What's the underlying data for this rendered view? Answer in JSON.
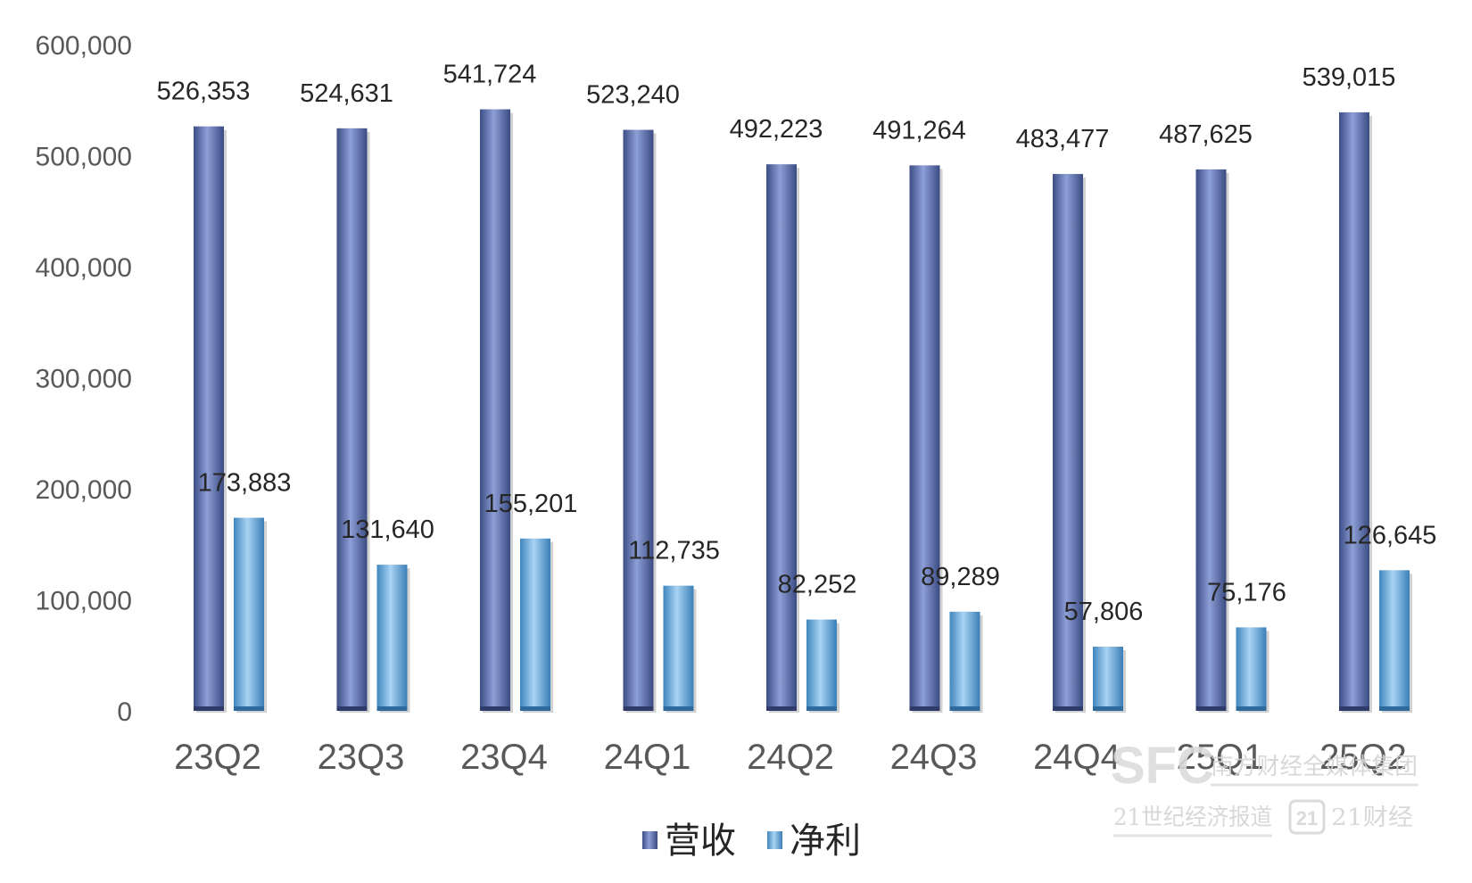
{
  "chart_data": {
    "type": "bar",
    "categories": [
      "23Q2",
      "23Q3",
      "23Q4",
      "24Q1",
      "24Q2",
      "24Q3",
      "24Q4",
      "25Q1",
      "25Q2"
    ],
    "series": [
      {
        "name": "营收",
        "values": [
          526353,
          524631,
          541724,
          523240,
          492223,
          491264,
          483477,
          487625,
          539015
        ],
        "labels": [
          "526,353",
          "524,631",
          "541,724",
          "523,240",
          "492,223",
          "491,264",
          "483,477",
          "487,625",
          "539,015"
        ],
        "color": "#5b6fae"
      },
      {
        "name": "净利",
        "values": [
          173883,
          131640,
          155201,
          112735,
          82252,
          89289,
          57806,
          75176,
          126645
        ],
        "labels": [
          "173,883",
          "131,640",
          "155,201",
          "112,735",
          "82,252",
          "89,289",
          "57,806",
          "75,176",
          "126,645"
        ],
        "color": "#6aaad8"
      }
    ],
    "yticks": [
      "0",
      "100,000",
      "200,000",
      "300,000",
      "400,000",
      "500,000",
      "600,000"
    ],
    "ylim": [
      0,
      600000
    ],
    "grid": false,
    "legend": "bottom-center"
  },
  "watermark": {
    "logo": "SFC",
    "line1": "南方财经全媒体集团",
    "line2": "21世纪经济报道",
    "line3": "21财经"
  }
}
